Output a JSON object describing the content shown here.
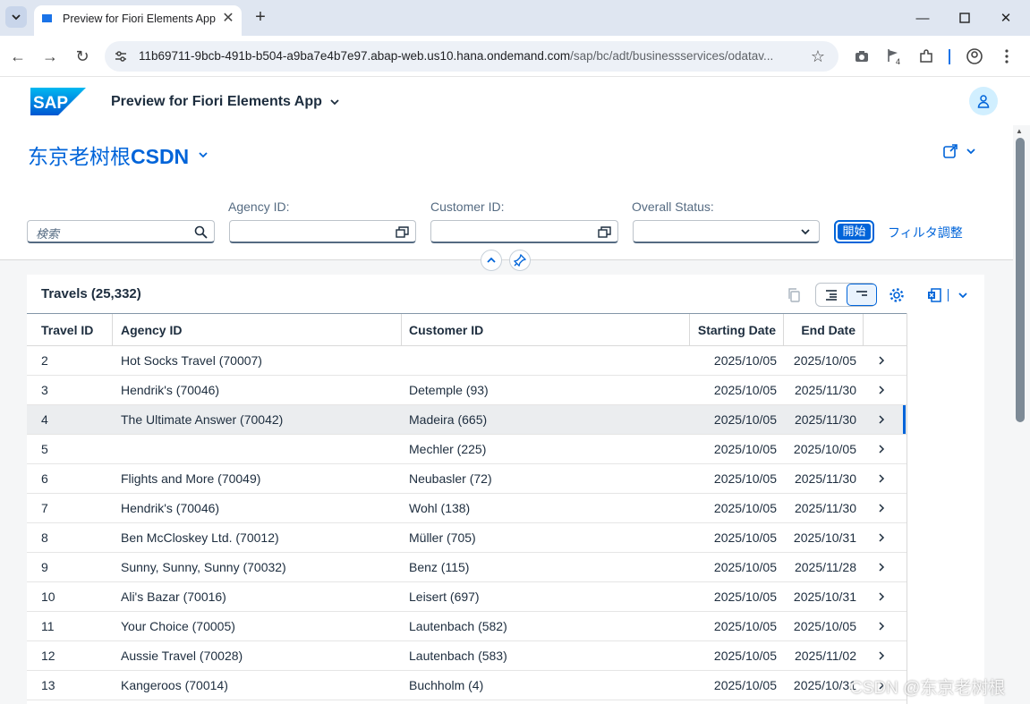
{
  "browser": {
    "tab_title": "Preview for Fiori Elements App",
    "url_host": "11b69711-9bcb-491b-b504-a9ba7e4b7e97.abap-web.us10.hana.ondemand.com",
    "url_path": "/sap/bc/adt/businessservices/odatav...",
    "extension_badge": "4"
  },
  "shell": {
    "logo_text": "SAP",
    "app_title": "Preview for Fiori Elements App"
  },
  "header": {
    "variant_prefix": "东京老树根",
    "variant_bold": "CSDN"
  },
  "filter_bar": {
    "search_placeholder": "検索",
    "agency_label": "Agency ID:",
    "customer_label": "Customer ID:",
    "status_label": "Overall Status:",
    "go_label": "開始",
    "adapt_label": "フィルタ調整"
  },
  "table": {
    "title": "Travels (25,332)",
    "columns": [
      "Travel ID",
      "Agency ID",
      "Customer ID",
      "Starting Date",
      "End Date"
    ],
    "rows": [
      {
        "id": "2",
        "agency": "Hot Socks Travel (70007)",
        "customer": "",
        "start": "2025/10/05",
        "end": "2025/10/05",
        "selected": false
      },
      {
        "id": "3",
        "agency": "Hendrik's (70046)",
        "customer": "Detemple (93)",
        "start": "2025/10/05",
        "end": "2025/11/30",
        "selected": false
      },
      {
        "id": "4",
        "agency": "The Ultimate Answer (70042)",
        "customer": "Madeira (665)",
        "start": "2025/10/05",
        "end": "2025/11/30",
        "selected": true
      },
      {
        "id": "5",
        "agency": "",
        "customer": "Mechler (225)",
        "start": "2025/10/05",
        "end": "2025/10/05",
        "selected": false
      },
      {
        "id": "6",
        "agency": "Flights and More (70049)",
        "customer": "Neubasler (72)",
        "start": "2025/10/05",
        "end": "2025/11/30",
        "selected": false
      },
      {
        "id": "7",
        "agency": "Hendrik's (70046)",
        "customer": "Wohl (138)",
        "start": "2025/10/05",
        "end": "2025/11/30",
        "selected": false
      },
      {
        "id": "8",
        "agency": "Ben McCloskey Ltd. (70012)",
        "customer": "Müller (705)",
        "start": "2025/10/05",
        "end": "2025/10/31",
        "selected": false
      },
      {
        "id": "9",
        "agency": "Sunny, Sunny, Sunny (70032)",
        "customer": "Benz (115)",
        "start": "2025/10/05",
        "end": "2025/11/28",
        "selected": false
      },
      {
        "id": "10",
        "agency": "Ali's Bazar (70016)",
        "customer": "Leisert (697)",
        "start": "2025/10/05",
        "end": "2025/10/31",
        "selected": false
      },
      {
        "id": "11",
        "agency": "Your Choice (70005)",
        "customer": "Lautenbach (582)",
        "start": "2025/10/05",
        "end": "2025/10/05",
        "selected": false
      },
      {
        "id": "12",
        "agency": "Aussie Travel (70028)",
        "customer": "Lautenbach (583)",
        "start": "2025/10/05",
        "end": "2025/11/02",
        "selected": false
      },
      {
        "id": "13",
        "agency": "Kangeroos (70014)",
        "customer": "Buchholm (4)",
        "start": "2025/10/05",
        "end": "2025/10/31",
        "selected": false
      }
    ]
  },
  "watermark": "CSDN @东京老树根",
  "colors": {
    "accent": "#0064d9",
    "selected_row": "#ebedef"
  }
}
